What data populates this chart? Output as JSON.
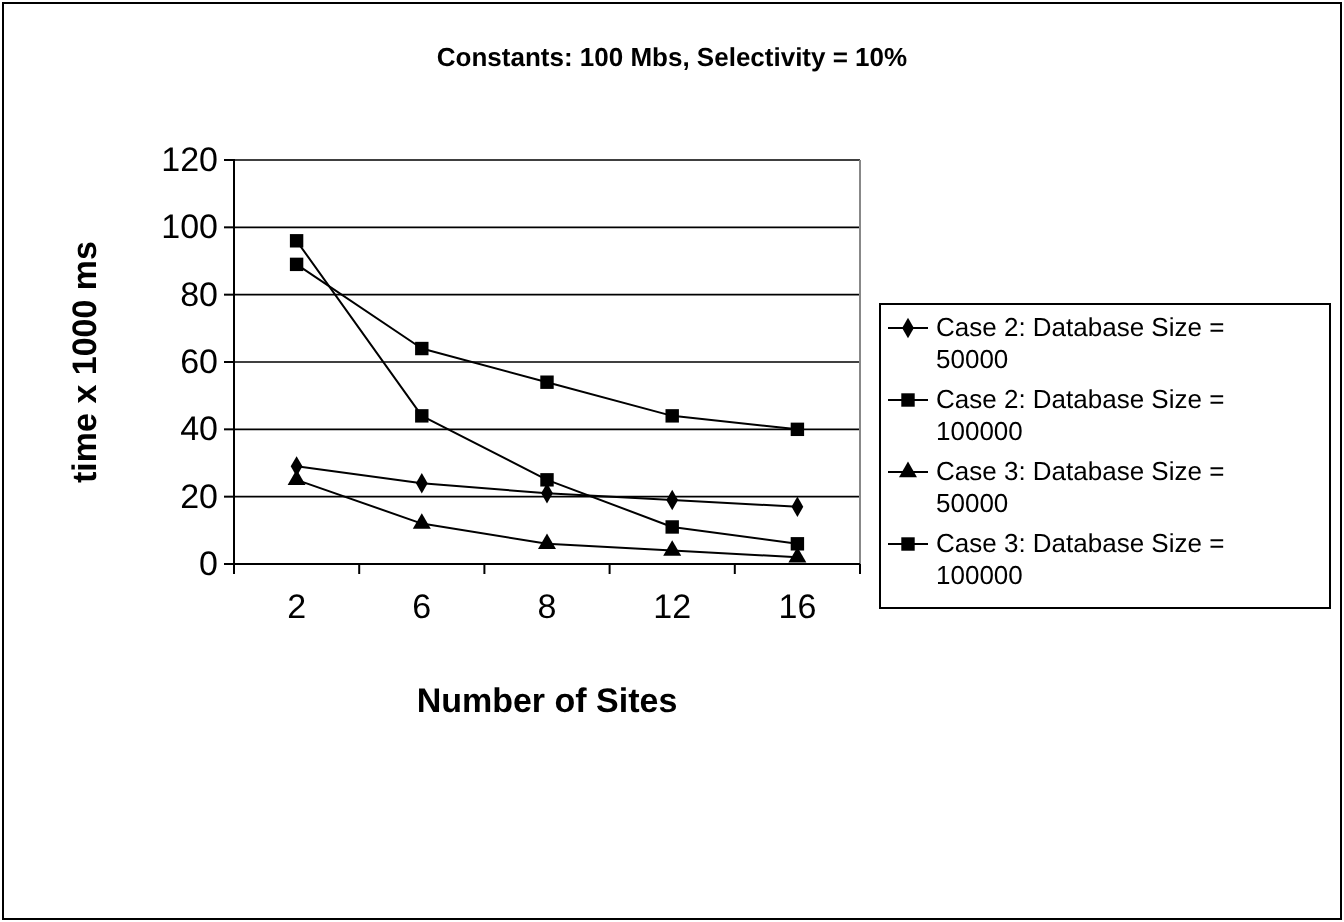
{
  "chart_data": {
    "type": "line",
    "title": "Constants: 100 Mbs, Selectivity = 10%",
    "xlabel": "Number of Sites",
    "ylabel": "time x 1000 ms",
    "categories": [
      "2",
      "6",
      "8",
      "12",
      "16"
    ],
    "series": [
      {
        "name": "Case 2: Database Size = 50000",
        "color": "#000000",
        "marker": "diamond",
        "values": [
          29,
          24,
          21,
          19,
          17
        ]
      },
      {
        "name": "Case 2: Database Size = 100000",
        "color": "#000000",
        "marker": "square",
        "values": [
          89,
          64,
          54,
          44,
          40
        ]
      },
      {
        "name": "Case 3: Database Size = 50000",
        "color": "#000000",
        "marker": "triangle",
        "values": [
          25,
          12,
          6,
          4,
          2
        ]
      },
      {
        "name": "Case 3: Database Size = 100000",
        "color": "#000000",
        "marker": "square",
        "values": [
          96,
          44,
          25,
          11,
          6
        ]
      }
    ],
    "ylim": [
      0,
      120
    ],
    "yticks": [
      0,
      20,
      40,
      60,
      80,
      100,
      120
    ],
    "grid": "y",
    "legend": "right",
    "line_style": "solid"
  }
}
